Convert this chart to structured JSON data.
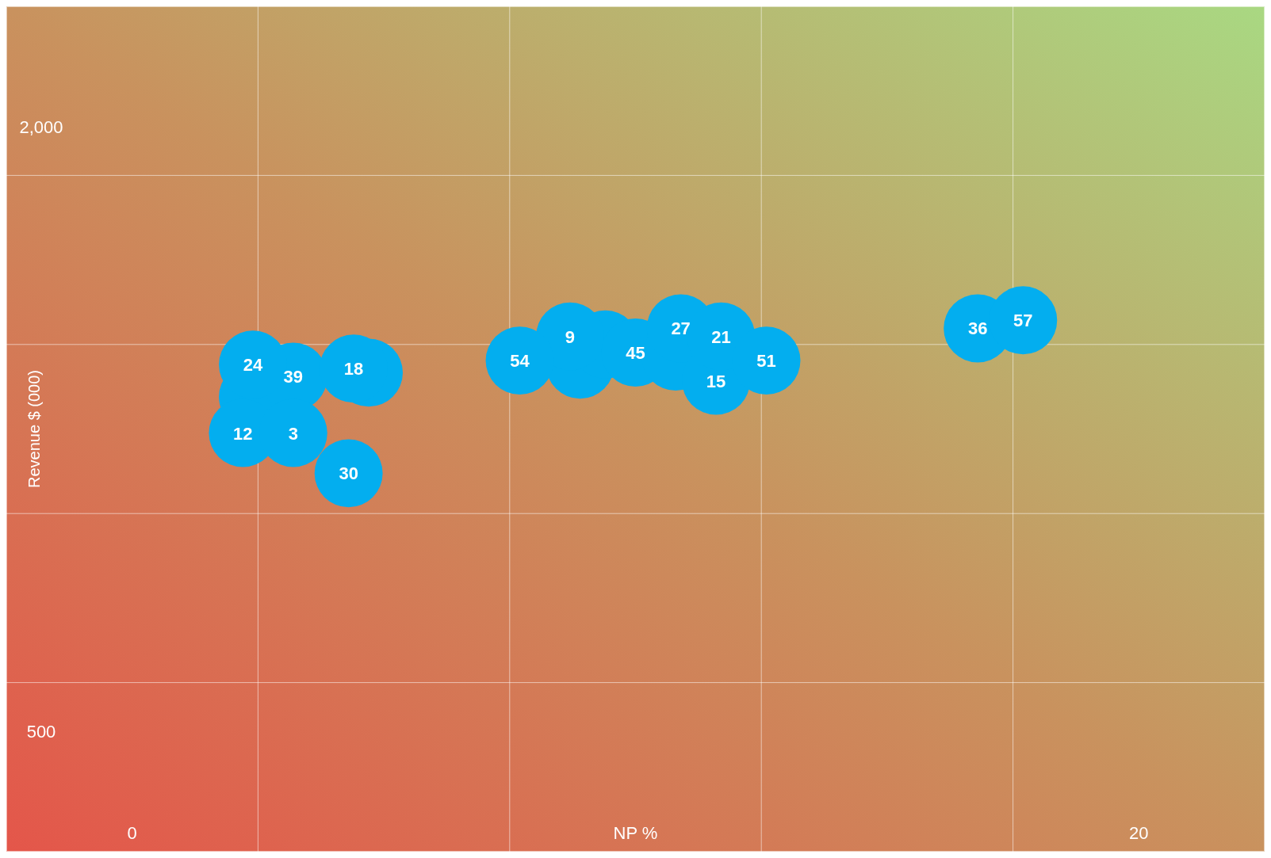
{
  "chart_data": {
    "type": "bubble",
    "xlabel": "NP %",
    "ylabel": "Revenue $ (000)",
    "xlim": [
      -2.5,
      22.5
    ],
    "xticks": [
      0,
      {
        "value": 2.5,
        "label": null
      },
      {
        "value": 7.5,
        "label": null
      },
      {
        "value": 12.5,
        "label": null
      },
      {
        "value": 17.5,
        "label": null
      },
      20
    ],
    "ylim": [
      200,
      2300
    ],
    "yticks": [
      500,
      {
        "value": 620,
        "label": null
      },
      {
        "value": 1040,
        "label": null
      },
      {
        "value": 1460,
        "label": null
      },
      {
        "value": 1880,
        "label": null
      },
      {
        "value": 2000,
        "label": "2,000"
      }
    ],
    "grid": true,
    "series": [
      {
        "color": "#03aeef",
        "x": [
          2.4,
          3.2,
          2.4,
          2.2,
          3.2,
          4.7,
          4.4,
          4.3,
          8.9,
          9.4,
          8.7,
          7.7,
          10.0,
          10.8,
          10.9,
          11.6,
          11.7,
          12.6,
          16.8,
          17.7
        ],
        "values": [
          1330,
          1380,
          1410,
          1240,
          1240,
          1390,
          1400,
          1140,
          1410,
          1460,
          1480,
          1420,
          1440,
          1430,
          1500,
          1370,
          1480,
          1420,
          1500,
          1520
        ],
        "sizes": [
          1,
          1,
          1,
          1,
          1,
          1,
          1,
          1,
          1,
          1,
          1,
          1,
          1,
          1,
          1,
          1,
          1,
          1,
          1,
          1
        ]
      }
    ],
    "annotations": [
      {
        "text": "39",
        "x": 3.2,
        "y": 1380
      },
      {
        "text": "24",
        "x": 2.4,
        "y": 1410
      },
      {
        "text": "12",
        "x": 2.2,
        "y": 1240
      },
      {
        "text": "3",
        "x": 3.2,
        "y": 1240
      },
      {
        "text": "18",
        "x": 4.4,
        "y": 1400
      },
      {
        "text": "30",
        "x": 4.3,
        "y": 1140
      },
      {
        "text": "9",
        "x": 8.7,
        "y": 1480
      },
      {
        "text": "54",
        "x": 7.7,
        "y": 1420
      },
      {
        "text": "45",
        "x": 10.0,
        "y": 1440
      },
      {
        "text": "27",
        "x": 10.9,
        "y": 1500
      },
      {
        "text": "15",
        "x": 11.6,
        "y": 1370
      },
      {
        "text": "21",
        "x": 11.7,
        "y": 1480
      },
      {
        "text": "51",
        "x": 12.6,
        "y": 1420
      },
      {
        "text": "36",
        "x": 16.8,
        "y": 1500
      },
      {
        "text": "57",
        "x": 17.7,
        "y": 1520
      }
    ]
  }
}
